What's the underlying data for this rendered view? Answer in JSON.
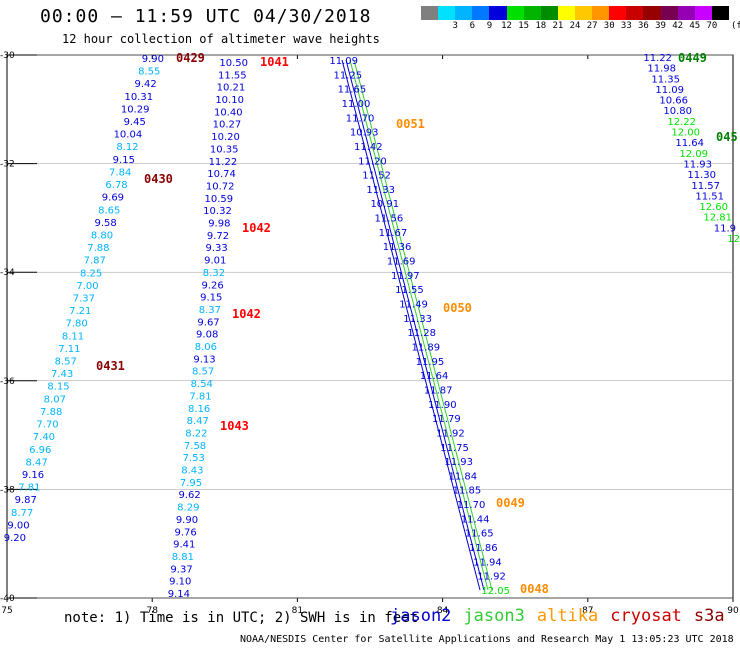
{
  "header": {
    "title": "00:00 – 11:59 UTC 04/30/2018",
    "subtitle": "12 hour collection of altimeter wave heights"
  },
  "colorbar": {
    "colors": [
      "#808080",
      "#00e0ff",
      "#00b4ff",
      "#0078ff",
      "#0000dc",
      "#00e000",
      "#00b400",
      "#008c00",
      "#ffff00",
      "#ffc800",
      "#ff9600",
      "#ff0000",
      "#c80000",
      "#960000",
      "#780050",
      "#9600b4",
      "#c800ff",
      "#000000"
    ],
    "labels": [
      "3",
      "6",
      "9",
      "12",
      "15",
      "18",
      "21",
      "24",
      "27",
      "30",
      "33",
      "36",
      "39",
      "42",
      "45",
      "70"
    ],
    "unit": "(ft)"
  },
  "axes": {
    "lon_labels": [
      "75",
      "78",
      "81",
      "84",
      "87",
      "90"
    ],
    "lat_labels": [
      "-30",
      "-32",
      "-34",
      "-36",
      "-38",
      "-40"
    ]
  },
  "time_labels": [
    {
      "text": "0429",
      "color": "#8b0000"
    },
    {
      "text": "1041",
      "color": "#ff0000"
    },
    {
      "text": "0430",
      "color": "#8b0000"
    },
    {
      "text": "1042",
      "color": "#ff0000"
    },
    {
      "text": "1042",
      "color": "#ff0000"
    },
    {
      "text": "0431",
      "color": "#8b0000"
    },
    {
      "text": "1043",
      "color": "#ff0000"
    },
    {
      "text": "0051",
      "color": "#ff8c00"
    },
    {
      "text": "0050",
      "color": "#ff8c00"
    },
    {
      "text": "0049",
      "color": "#ff8c00"
    },
    {
      "text": "0048",
      "color": "#ff8c00"
    },
    {
      "text": "0449",
      "color": "#008000"
    },
    {
      "text": "045",
      "color": "#008000"
    }
  ],
  "tracks": {
    "track_0429": [
      "9.90",
      "8.55",
      "9.42",
      "10.31",
      "10.29",
      "9.45",
      "10.04",
      "8.12",
      "9.15",
      "7.84",
      "6.78",
      "9.69",
      "8.65",
      "9.58",
      "8.80",
      "7.88",
      "7.87",
      "8.25",
      "7.00",
      "7.37",
      "7.21",
      "7.80",
      "8.11",
      "7.11",
      "8.57",
      "7.43",
      "8.15",
      "8.07",
      "7.88",
      "7.70",
      "7.40",
      "6.96",
      "8.47",
      "9.16",
      "7.81",
      "9.87",
      "8.77",
      "9.00",
      "9.20"
    ],
    "track_1041": [
      "10.50",
      "11.55",
      "10.21",
      "10.10",
      "10.40",
      "10.27",
      "10.20",
      "10.35",
      "11.22",
      "10.74",
      "10.72",
      "10.59",
      "10.32",
      "9.98",
      "9.72",
      "9.33",
      "9.01",
      "8.32",
      "9.26",
      "9.15",
      "8.37",
      "9.67",
      "9.08",
      "8.06",
      "9.13",
      "8.57",
      "8.54",
      "7.81",
      "8.16",
      "8.47",
      "8.22",
      "7.58",
      "7.53",
      "8.43",
      "7.95",
      "9.62",
      "8.29",
      "9.90",
      "9.76",
      "9.41",
      "8.81",
      "9.37",
      "9.10",
      "9.14"
    ],
    "track_0051": [
      "11.09",
      "11.25",
      "11.65",
      "11.00",
      "11.70",
      "10.93",
      "11.42",
      "11.20",
      "11.52",
      "11.33",
      "10.91",
      "11.56",
      "11.67",
      "11.36",
      "11.69",
      "11.97",
      "11.55",
      "11.49",
      "11.33",
      "11.28",
      "11.89",
      "11.95",
      "11.64",
      "11.87",
      "11.90",
      "11.79",
      "11.92",
      "11.75",
      "11.93",
      "11.84",
      "11.85",
      "11.70",
      "11.44",
      "11.65",
      "11.86",
      "11.94",
      "11.92",
      "12.05"
    ],
    "track_0449": [
      "11.22",
      "11.98",
      "11.35",
      "11.09",
      "10.66",
      "10.80",
      "12.22",
      "12.00",
      "11.64",
      "12.09",
      "11.93",
      "11.30",
      "11.57",
      "11.51",
      "12.60",
      "12.81",
      "11.9",
      "12"
    ]
  },
  "footer": {
    "note": "note:  1) Time is in UTC;  2) SWH is in feet",
    "legend": [
      {
        "name": "jason2",
        "color": "#0000cc"
      },
      {
        "name": "jason3",
        "color": "#33cc33"
      },
      {
        "name": "altika",
        "color": "#ff9900"
      },
      {
        "name": "cryosat",
        "color": "#cc0000"
      },
      {
        "name": "s3a",
        "color": "#8b0000"
      }
    ],
    "credit": "NOAA/NESDIS Center for Satellite Applications and Research    May  1 13:05:23 UTC 2018"
  }
}
